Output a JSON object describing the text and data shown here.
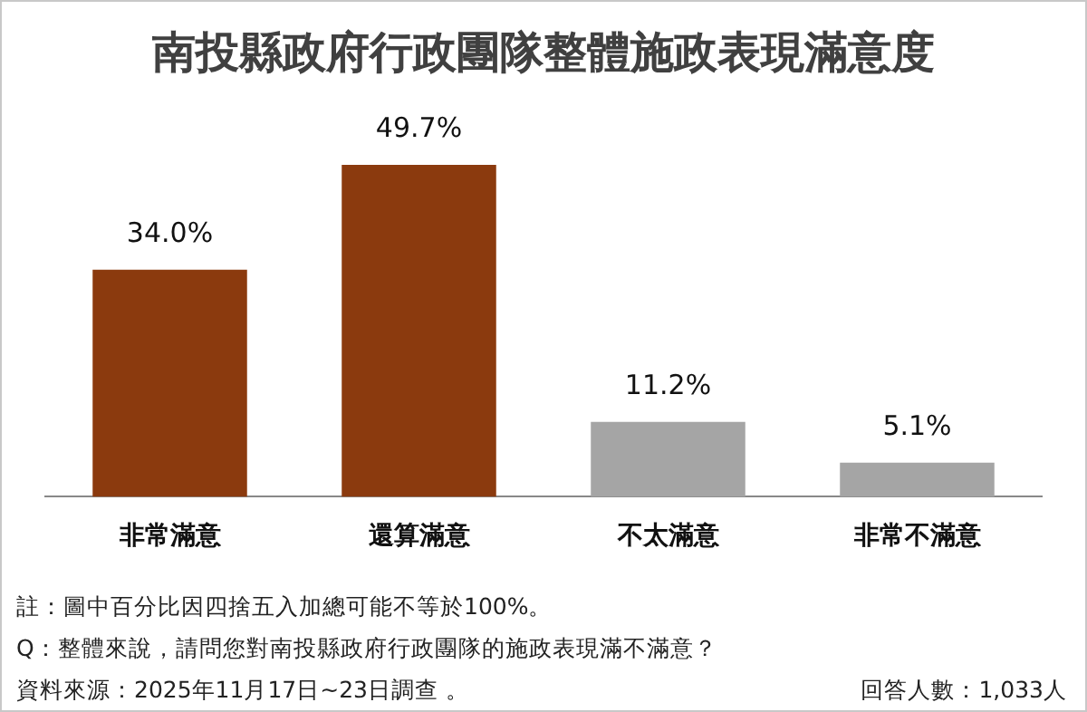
{
  "chart_data": {
    "type": "bar",
    "title": "南投縣政府行政團隊整體施政表現滿意度",
    "categories": [
      "非常滿意",
      "還算滿意",
      "不太滿意",
      "非常不滿意"
    ],
    "values": [
      34.0,
      49.7,
      11.2,
      5.1
    ],
    "value_labels": [
      "34.0%",
      "49.7%",
      "11.2%",
      "5.1%"
    ],
    "colors": [
      "#8b3a0e",
      "#8b3a0e",
      "#a5a5a5",
      "#a5a5a5"
    ],
    "grid": false,
    "legend": false,
    "annotations": [
      "註：圖中百分比因四捨五入加總可能不等於100%。",
      "Q：整體來說，請問您對南投縣政府行政團隊的施政表現滿不滿意？",
      "資料來源：2025年11月17日~23日調查 。",
      "回答人數：1,033人"
    ]
  }
}
